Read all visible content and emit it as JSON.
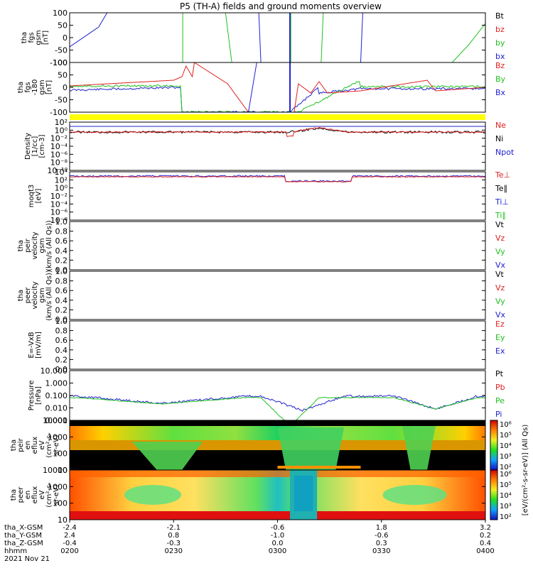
{
  "title": "P5 (TH-A) fields and ground moments overview",
  "panels": [
    {
      "ylabel": [
        "tha",
        "fgs",
        "gsm",
        "[nT]"
      ],
      "ticks": [
        "100",
        "50",
        "0",
        "-50",
        "-100"
      ],
      "tick_values": [
        100,
        50,
        0,
        -50,
        -100
      ],
      "legend": [
        {
          "text": "Bt",
          "color": "#000000"
        },
        {
          "text": "bz",
          "color": "#e02020"
        },
        {
          "text": "by",
          "color": "#20c020"
        },
        {
          "text": "bx",
          "color": "#2020d0"
        }
      ]
    },
    {
      "ylabel": [
        "tha",
        "fgs",
        "-180",
        "gsm",
        "[nT]"
      ],
      "ticks": [
        "100",
        "50",
        "0",
        "-50",
        "-100"
      ],
      "tick_values": [
        100,
        50,
        0,
        -50,
        -100
      ],
      "legend": [
        {
          "text": "Bz",
          "color": "#e02020"
        },
        {
          "text": "By",
          "color": "#20c020"
        },
        {
          "text": "Bx",
          "color": "#2020d0"
        }
      ]
    },
    {
      "ylabel": [
        "Density",
        "[1/cc]",
        "[cm-3]"
      ],
      "ticks": [
        "10²",
        "10⁰",
        "10⁻²",
        "10⁻⁴",
        "10⁻⁶",
        "10⁻⁸",
        "10⁻¹⁰"
      ],
      "legend": [
        {
          "text": "Ne",
          "color": "#e02020"
        },
        {
          "text": "Ni",
          "color": "#000000"
        },
        {
          "text": "Npot",
          "color": "#2020d0"
        }
      ]
    },
    {
      "ylabel": [
        "moqt3",
        "[eV]"
      ],
      "ticks": [
        "10⁴",
        "10²",
        "10⁰",
        "10⁻²",
        "10⁻⁴",
        "10⁻⁶",
        "10⁻⁸"
      ],
      "legend": [
        {
          "text": "Te⊥",
          "color": "#e02020"
        },
        {
          "text": "Te∥",
          "color": "#000000"
        },
        {
          "text": "Ti⊥",
          "color": "#2020d0"
        },
        {
          "text": "Ti∥",
          "color": "#20c020"
        }
      ]
    },
    {
      "ylabel": [
        "tha",
        "peir",
        "velocity",
        "gsm",
        "(km/s (All Qs))"
      ],
      "ticks": [
        "1.0",
        "0.8",
        "0.6",
        "0.4",
        "0.2",
        "0.0"
      ],
      "legend": [
        {
          "text": "Vt",
          "color": "#000000"
        },
        {
          "text": "Vz",
          "color": "#e02020"
        },
        {
          "text": "Vy",
          "color": "#20c020"
        },
        {
          "text": "Vx",
          "color": "#2020d0"
        }
      ]
    },
    {
      "ylabel": [
        "tha",
        "peer",
        "velocity",
        "gsm",
        "(km/s (All Qs))"
      ],
      "ticks": [
        "1.0",
        "0.8",
        "0.6",
        "0.4",
        "0.2",
        "0.0"
      ],
      "legend": [
        {
          "text": "Vt",
          "color": "#000000"
        },
        {
          "text": "Vz",
          "color": "#e02020"
        },
        {
          "text": "Vy",
          "color": "#20c020"
        },
        {
          "text": "Vx",
          "color": "#2020d0"
        }
      ]
    },
    {
      "ylabel": [
        "E=-VxB",
        "[mV/m]"
      ],
      "ticks": [
        "1.0",
        "0.8",
        "0.6",
        "0.4",
        "0.2",
        "0.0"
      ],
      "legend": [
        {
          "text": "Ez",
          "color": "#e02020"
        },
        {
          "text": "Ey",
          "color": "#20c020"
        },
        {
          "text": "Ex",
          "color": "#2020d0"
        }
      ]
    },
    {
      "ylabel": [
        "Pressure",
        "[nPa]"
      ],
      "ticks": [
        "10.000",
        "1.000",
        "0.100",
        "0.010",
        "0.001"
      ],
      "legend": [
        {
          "text": "Pt",
          "color": "#000000"
        },
        {
          "text": "Pb",
          "color": "#e02020"
        },
        {
          "text": "Pe",
          "color": "#20c020"
        },
        {
          "text": "Pi",
          "color": "#2020d0"
        }
      ]
    },
    {
      "ylabel": [
        "tha",
        "peir",
        "en",
        "eflux",
        "eV",
        "(cm²-s-",
        "sr-eV)"
      ],
      "ticks": [
        "10000",
        "1000",
        "100",
        "10"
      ]
    },
    {
      "ylabel": [
        "tha",
        "peer",
        "en",
        "eflux",
        "eV",
        "(cm²-s-",
        "sr-eV)"
      ],
      "ticks": [
        "10000",
        "1000",
        "100",
        "10"
      ]
    }
  ],
  "colorbar_ticks": [
    "10⁶",
    "10⁵",
    "10⁴",
    "10³",
    "10²"
  ],
  "colorbar_label": "[eV/(cm²-s-sr-eV)] (All Qs)",
  "xaxis": {
    "row_labels": [
      "tha_X-GSM",
      "tha_Y-GSM",
      "tha_Z-GSM",
      "hhmm",
      "2021 Nov 21"
    ],
    "columns": [
      {
        "X": "-2.4",
        "Y": "2.4",
        "Z": "-0.4",
        "hhmm": "0200"
      },
      {
        "X": "-2.1",
        "Y": "0.8",
        "Z": "-0.3",
        "hhmm": "0230"
      },
      {
        "X": "-0.6",
        "Y": "-1.0",
        "Z": "0.0",
        "hhmm": "0300"
      },
      {
        "X": "1.8",
        "Y": "-0.6",
        "Z": "0.3",
        "hhmm": "0330"
      },
      {
        "X": "3.2",
        "Y": "0.2",
        "Z": "0.4",
        "hhmm": "0400"
      }
    ]
  },
  "chart_data": {
    "type": "line",
    "title": "P5 (TH-A) fields and ground moments overview",
    "x_time": [
      "0200",
      "0230",
      "0300",
      "0330",
      "0400"
    ],
    "date": "2021 Nov 21",
    "panels": [
      {
        "name": "tha fgs gsm [nT]",
        "ylim": [
          -100,
          100
        ],
        "series": [
          "Bt",
          "bz",
          "by",
          "bx"
        ]
      },
      {
        "name": "tha fgs -180 gsm [nT]",
        "ylim": [
          -100,
          100
        ],
        "series": [
          "Bz",
          "By",
          "Bx"
        ],
        "approx": {
          "Bx": [
            5,
            3,
            -100,
            -40,
            -5,
            -8
          ],
          "Bz": [
            10,
            15,
            20,
            5,
            2,
            10
          ]
        }
      },
      {
        "name": "Density [1/cc] [cm-3]",
        "scale": "log",
        "series": [
          "Ne",
          "Ni",
          "Npot"
        ],
        "approx_level": "~1 cc, peak ~10 cc near 0300"
      },
      {
        "name": "moqt3 [eV]",
        "scale": "log",
        "series": [
          "Te⊥",
          "Te∥",
          "Ti⊥",
          "Ti∥"
        ],
        "approx_level": "~10^3 eV, dip to ~10^2 eV near 0300"
      },
      {
        "name": "Pressure [nPa]",
        "scale": "log",
        "series": [
          "Pt",
          "Pb",
          "Pe",
          "Pi"
        ],
        "approx": {
          "Pi": [
            0.08,
            0.08,
            0.05,
            0.02,
            0.005,
            0.02,
            0.09,
            0.08,
            0.005,
            0.05,
            0.1
          ],
          "x": [
            "0200",
            "0212",
            "0224",
            "0236",
            "0300",
            "0312",
            "0324",
            "0336",
            "0348",
            "0355",
            "0400"
          ]
        }
      },
      {
        "name": "tha peir en eflux",
        "type": "heatmap",
        "ylim": [
          10,
          10000
        ],
        "scale": "log"
      },
      {
        "name": "tha peer en eflux",
        "type": "heatmap",
        "ylim": [
          10,
          10000
        ],
        "scale": "log"
      }
    ]
  }
}
